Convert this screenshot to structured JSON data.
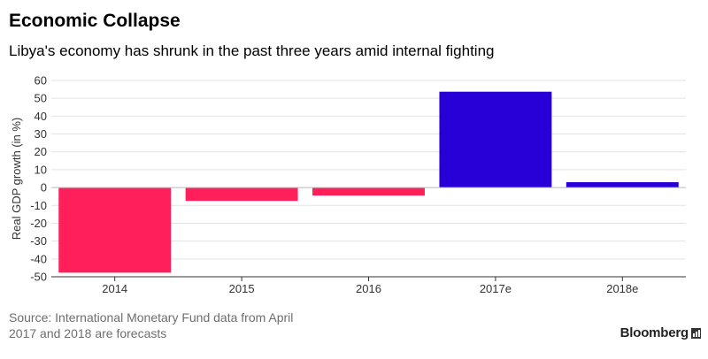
{
  "title": "Economic Collapse",
  "subtitle": "Libya's economy has shrunk in the past three years amid internal fighting",
  "footer": {
    "source": "Source: International Monetary Fund data from April",
    "note": "2017 and 2018 are forecasts"
  },
  "brand": "Bloomberg",
  "chart_data": {
    "type": "bar",
    "categories": [
      "2014",
      "2015",
      "2016",
      "2017e",
      "2018e"
    ],
    "values": [
      -47.7,
      -7.5,
      -4.5,
      53.7,
      3.0
    ],
    "colors": [
      "#ff1f5b",
      "#ff1f5b",
      "#ff1f5b",
      "#2800d7",
      "#2800d7"
    ],
    "ylabel": "Real GDP growth (in %)",
    "xlabel": "",
    "ylim": [
      -50,
      60
    ],
    "yticks": [
      -50,
      -40,
      -30,
      -20,
      -10,
      0,
      10,
      20,
      30,
      40,
      50,
      60
    ],
    "grid": true
  }
}
